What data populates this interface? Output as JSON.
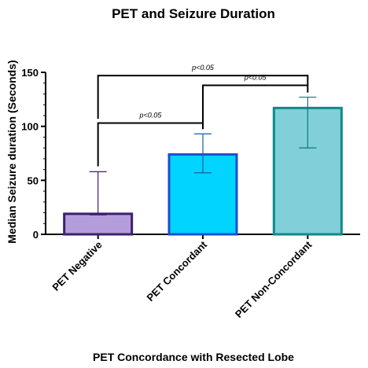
{
  "chart_data": {
    "type": "bar",
    "title": "PET and Seizure Duration",
    "xlabel": "PET Concordance with Resected Lobe",
    "ylabel": "Median Seizure duration (Seconds)",
    "ylim": [
      0,
      150
    ],
    "yticks": [
      0,
      50,
      100,
      150
    ],
    "categories": [
      "PET Negative",
      "PET Concordant",
      "PET Non-Concordant"
    ],
    "values": [
      19,
      74,
      117
    ],
    "error_low": [
      18,
      57,
      80
    ],
    "error_high": [
      58,
      93,
      127
    ],
    "colors": {
      "fill": [
        "#b39ddb",
        "#00d4ff",
        "#80cfd9"
      ],
      "stroke": [
        "#3d1f6e",
        "#1a4fcf",
        "#0d8a8a"
      ],
      "error": [
        "#3d1f6e",
        "#1a5aa8",
        "#0d7a7a"
      ]
    },
    "significance": [
      {
        "from": 0,
        "to": 2,
        "label": "p<0.05",
        "level": 147
      },
      {
        "from": 1,
        "to": 2,
        "label": "p<0.05",
        "level": 138
      },
      {
        "from": 0,
        "to": 1,
        "label": "p<0.05",
        "level": 103
      }
    ],
    "grid": false,
    "legend": "none"
  }
}
